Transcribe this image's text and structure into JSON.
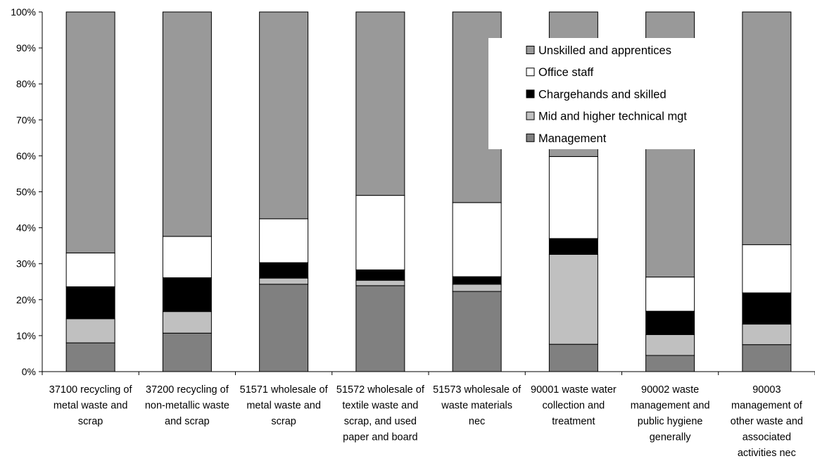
{
  "chart_data": {
    "type": "bar",
    "stacked": true,
    "percent_stacked": true,
    "title": "",
    "xlabel": "",
    "ylabel": "",
    "ylim": [
      0,
      100
    ],
    "y_ticks": [
      "0%",
      "10%",
      "20%",
      "30%",
      "40%",
      "50%",
      "60%",
      "70%",
      "80%",
      "90%",
      "100%"
    ],
    "grid": false,
    "legend_position": "top-right",
    "categories": [
      "37100 recycling of metal waste and scrap",
      "37200 recycling of non-metallic waste and scrap",
      "51571 wholesale of metal waste and scrap",
      "51572 wholesale of textile waste and scrap, and used paper and board",
      "51573 wholesale of waste materials nec",
      "90001 waste water collection and treatment",
      "90002 waste management and public hygiene generally",
      "90003 management of other waste and associated activities nec"
    ],
    "category_lines": [
      [
        "37100  recycling of",
        "metal waste and",
        "scrap"
      ],
      [
        "37200  recycling of",
        "non-metallic waste",
        "and scrap"
      ],
      [
        "51571 wholesale of",
        "metal waste and",
        "scrap"
      ],
      [
        "51572 wholesale of",
        "textile waste and",
        "scrap, and used",
        "paper and board"
      ],
      [
        "51573 wholesale of",
        "waste materials",
        "nec"
      ],
      [
        "90001 waste water",
        "collection and",
        "treatment"
      ],
      [
        "90002 waste",
        "management and",
        "public hygiene",
        "generally"
      ],
      [
        "90003",
        "management of",
        "other waste and",
        "associated",
        "activities nec"
      ]
    ],
    "series": [
      {
        "name": "Management",
        "color": "#808080",
        "values": [
          8.0,
          10.7,
          24.3,
          23.9,
          22.3,
          7.6,
          4.5,
          7.5
        ]
      },
      {
        "name": "Mid and higher technical mgt",
        "color": "#c0c0c0",
        "values": [
          6.7,
          6.0,
          1.7,
          1.5,
          2.0,
          25.0,
          5.8,
          5.7
        ]
      },
      {
        "name": "Chargehands and skilled",
        "color": "#000000",
        "values": [
          8.9,
          9.4,
          4.3,
          2.9,
          2.1,
          4.4,
          6.5,
          8.7
        ]
      },
      {
        "name": "Office staff",
        "color": "#ffffff",
        "values": [
          9.4,
          11.5,
          12.2,
          20.7,
          20.6,
          22.8,
          9.5,
          13.4
        ]
      },
      {
        "name": "Unskilled and apprentices",
        "color": "#999999",
        "values": [
          67.0,
          62.4,
          57.5,
          51.0,
          53.0,
          40.2,
          73.7,
          64.7
        ]
      }
    ],
    "legend_order": [
      "Unskilled and apprentices",
      "Office staff",
      "Chargehands and skilled",
      "Mid and higher technical mgt",
      "Management"
    ]
  }
}
